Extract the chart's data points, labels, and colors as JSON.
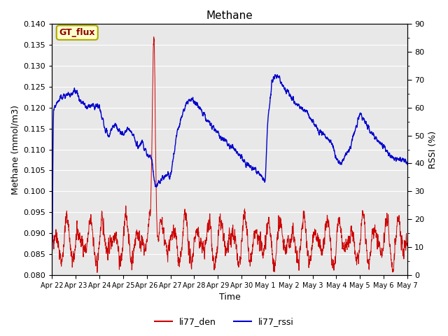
{
  "title": "Methane",
  "ylabel_left": "Methane (mmol/m3)",
  "ylabel_right": "RSSI (%)",
  "xlabel": "Time",
  "ylim_left": [
    0.08,
    0.14
  ],
  "ylim_right": [
    0,
    90
  ],
  "yticks_left": [
    0.08,
    0.085,
    0.09,
    0.095,
    0.1,
    0.105,
    0.11,
    0.115,
    0.12,
    0.125,
    0.13,
    0.135,
    0.14
  ],
  "yticks_right_major": [
    0,
    10,
    20,
    30,
    40,
    50,
    60,
    70,
    80,
    90
  ],
  "yticks_right_minor": [
    5,
    15,
    25,
    35,
    45,
    55,
    65,
    75,
    85
  ],
  "xtick_labels": [
    "Apr 22",
    "Apr 23",
    "Apr 24",
    "Apr 25",
    "Apr 26",
    "Apr 27",
    "Apr 28",
    "Apr 29",
    "Apr 30",
    "May 1",
    "May 2",
    "May 3",
    "May 4",
    "May 5",
    "May 6",
    "May 7"
  ],
  "legend_labels": [
    "li77_den",
    "li77_rssi"
  ],
  "line_colors": [
    "#cc0000",
    "#0000cc"
  ],
  "background_color": "#e8e8e8",
  "fig_background": "#ffffff",
  "gt_flux_label": "GT_flux",
  "gt_flux_bg": "#ffffcc",
  "gt_flux_border": "#aaaa00"
}
